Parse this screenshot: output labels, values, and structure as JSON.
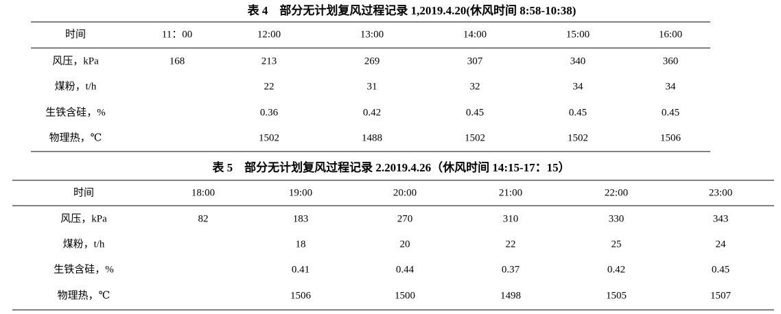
{
  "tables": [
    {
      "title": "表 4　部分无计划复风过程记录 1,2019.4.20(休风时间 8:58-10:38)",
      "header": [
        "时间",
        "11：00",
        "12:00",
        "13:00",
        "14:00",
        "15:00",
        "16:00"
      ],
      "rows": [
        [
          "风压，kPa",
          "168",
          "213",
          "269",
          "307",
          "340",
          "360"
        ],
        [
          "煤粉，t/h",
          null,
          "22",
          "31",
          "32",
          "34",
          "34"
        ],
        [
          "生铁含硅，%",
          null,
          "0.36",
          "0.42",
          "0.45",
          "0.45",
          "0.45"
        ],
        [
          "物理热，℃",
          null,
          "1502",
          "1488",
          "1502",
          "1502",
          "1506"
        ]
      ]
    },
    {
      "title": "表 5　部分无计划复风过程记录 2.2019.4.26（休风时间 14:15-17：15）",
      "header": [
        "时间",
        "18:00",
        "19:00",
        "20:00",
        "21:00",
        "22:00",
        "23:00"
      ],
      "rows": [
        [
          "风压，kPa",
          "82",
          "183",
          "270",
          "310",
          "330",
          "343"
        ],
        [
          "煤粉，t/h",
          null,
          "18",
          "20",
          "22",
          "25",
          "24"
        ],
        [
          "生铁含硅，%",
          null,
          "0.41",
          "0.44",
          "0.37",
          "0.42",
          "0.45"
        ],
        [
          "物理热，℃",
          null,
          "1506",
          "1500",
          "1498",
          "1505",
          "1507"
        ]
      ]
    }
  ]
}
